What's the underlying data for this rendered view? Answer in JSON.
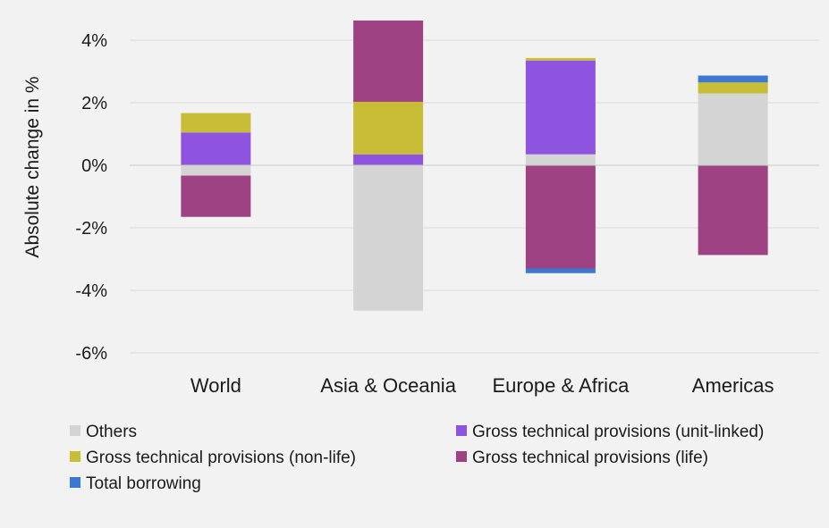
{
  "chart_data": {
    "type": "bar",
    "stacked": true,
    "ylabel": "Absolute change in %",
    "ylim": [
      -6,
      4.7
    ],
    "yticks": [
      4,
      2,
      0,
      -2,
      -4,
      -6
    ],
    "ytick_labels": [
      "4%",
      "2%",
      "0%",
      "-2%",
      "-4%",
      "-6%"
    ],
    "grid": true,
    "legend_position": "bottom",
    "categories": [
      "World",
      "Asia & Oceania",
      "Europe & Africa",
      "Americas"
    ],
    "series": [
      {
        "name": "Others",
        "color": "#d4d4d4",
        "values": [
          -0.33,
          -4.65,
          0.35,
          2.3
        ]
      },
      {
        "name": "Gross technical provisions (unit-linked)",
        "color": "#8e54e0",
        "values": [
          1.05,
          0.35,
          3.0,
          0.0
        ]
      },
      {
        "name": "Gross technical provisions (non-life)",
        "color": "#c8bd36",
        "values": [
          0.62,
          1.68,
          0.08,
          0.35
        ]
      },
      {
        "name": "Gross technical provisions (life)",
        "color": "#9e4283",
        "values": [
          -1.32,
          2.6,
          -3.3,
          -2.87
        ]
      },
      {
        "name": "Total borrowing",
        "color": "#3d78d0",
        "values": [
          0.0,
          0.0,
          -0.15,
          0.22
        ]
      }
    ],
    "legend_order": [
      "Others",
      "Gross technical provisions (unit-linked)",
      "Gross technical provisions (non-life)",
      "Gross technical provisions (life)",
      "Total borrowing"
    ]
  }
}
